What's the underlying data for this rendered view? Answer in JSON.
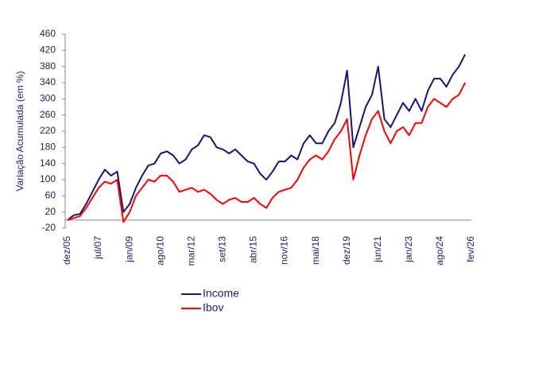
{
  "chart_data": {
    "type": "line",
    "y_label": "Variação Acumulada (em %)",
    "categories": [
      "dez/05",
      null,
      null,
      null,
      null,
      "jul/07",
      null,
      null,
      null,
      null,
      "jan/09",
      null,
      null,
      null,
      null,
      "ago/10",
      null,
      null,
      null,
      null,
      "mar/12",
      null,
      null,
      null,
      null,
      "set/13",
      null,
      null,
      null,
      null,
      "abr/15",
      null,
      null,
      null,
      null,
      "nov/16",
      null,
      null,
      null,
      null,
      "mai/18",
      null,
      null,
      null,
      null,
      "dez/19",
      null,
      null,
      null,
      null,
      "jun/21",
      null,
      null,
      null,
      null,
      "jan/23",
      null,
      null,
      null,
      null,
      "ago/24",
      null,
      null,
      null,
      null,
      "fev/26"
    ],
    "series": [
      {
        "name": "Income",
        "color": "#14147a",
        "values": [
          0,
          12,
          15,
          40,
          70,
          100,
          125,
          110,
          120,
          20,
          40,
          80,
          110,
          135,
          140,
          165,
          170,
          160,
          140,
          150,
          175,
          185,
          210,
          205,
          180,
          175,
          165,
          175,
          160,
          145,
          140,
          115,
          100,
          120,
          145,
          145,
          160,
          150,
          190,
          210,
          190,
          190,
          220,
          240,
          290,
          370,
          180,
          230,
          280,
          310,
          380,
          250,
          230,
          260,
          290,
          270,
          300,
          270,
          320,
          350,
          350,
          330,
          360,
          380,
          410,
          null
        ]
      },
      {
        "name": "Ibov",
        "color": "#ff0000",
        "values": [
          0,
          5,
          10,
          30,
          55,
          80,
          95,
          90,
          100,
          -5,
          20,
          60,
          80,
          100,
          95,
          110,
          110,
          95,
          70,
          75,
          80,
          70,
          75,
          65,
          50,
          40,
          50,
          55,
          45,
          45,
          55,
          40,
          30,
          55,
          70,
          75,
          80,
          100,
          130,
          150,
          160,
          150,
          170,
          200,
          220,
          250,
          100,
          160,
          210,
          250,
          270,
          220,
          190,
          220,
          230,
          210,
          240,
          240,
          280,
          300,
          290,
          280,
          300,
          310,
          340,
          null
        ]
      }
    ],
    "ylim": [
      -20,
      460
    ],
    "yticks": [
      -20,
      20,
      60,
      100,
      140,
      180,
      220,
      260,
      300,
      340,
      380,
      420,
      460
    ]
  }
}
